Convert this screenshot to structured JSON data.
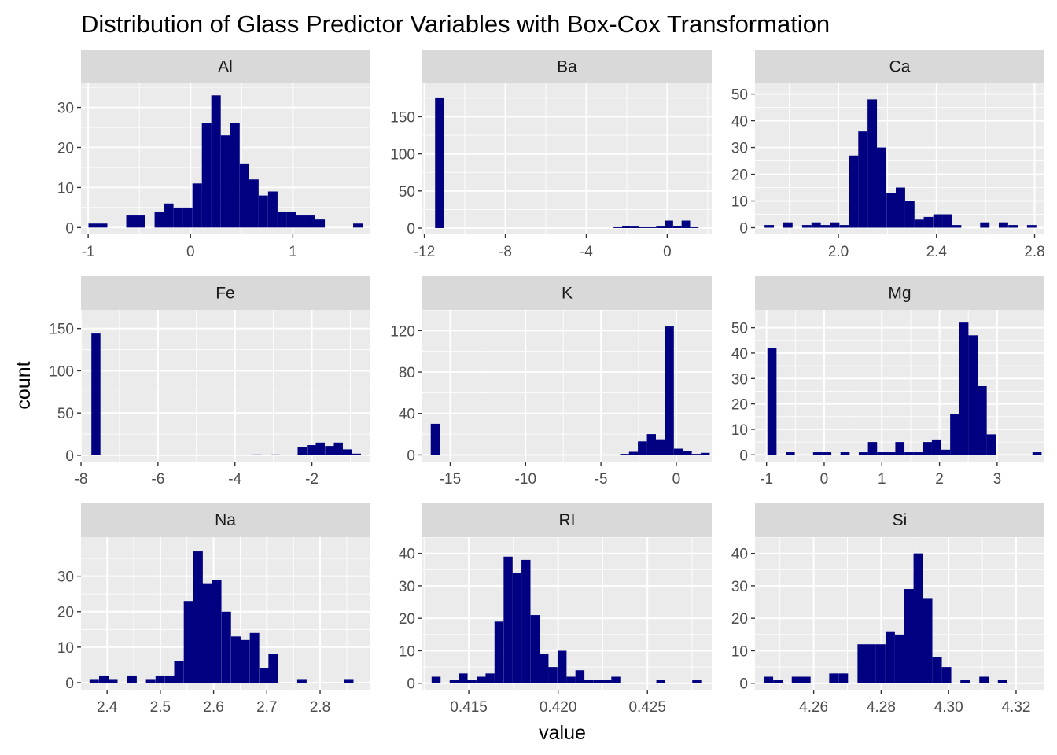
{
  "colors": {
    "bar": "#000080",
    "panel_background": "#ebebeb",
    "strip_background": "#d9d9d9",
    "grid": "#ffffff",
    "tick_text": "#4d4d4d"
  },
  "chart_data": {
    "type": "bar",
    "title": "Distribution of Glass Predictor Variables with Box-Cox Transformation",
    "xlabel": "value",
    "ylabel": "count",
    "grid": true,
    "facets": [
      {
        "name": "Al",
        "xlim": [
          -1.07,
          1.75
        ],
        "ylim": [
          -1.7,
          36
        ],
        "xticks": [
          -1,
          0,
          1
        ],
        "yticks": [
          0,
          10,
          20,
          30
        ],
        "xticklabels": [
          "-1",
          "0",
          "1"
        ],
        "yticklabels": [
          "0",
          "10",
          "20",
          "30"
        ],
        "bin_width": 0.0924,
        "bin_starts": [
          -0.997,
          -0.905,
          -0.628,
          -0.536,
          -0.351,
          -0.259,
          -0.166,
          -0.074,
          0.019,
          0.111,
          0.203,
          0.296,
          0.388,
          0.481,
          0.573,
          0.665,
          0.758,
          0.85,
          0.943,
          1.035,
          1.127,
          1.22,
          1.589
        ],
        "counts": [
          1,
          1,
          3,
          3,
          4,
          6,
          5,
          5,
          11,
          26,
          33,
          23,
          26,
          16,
          12,
          8,
          9,
          4,
          4,
          3,
          3,
          2,
          1
        ]
      },
      {
        "name": "Ba",
        "xlim": [
          -12.1,
          2.2
        ],
        "ylim": [
          -8.5,
          195
        ],
        "xticks": [
          -12,
          -8,
          -4,
          0
        ],
        "yticks": [
          0,
          50,
          100,
          150
        ],
        "xticklabels": [
          "-12",
          "-8",
          "-4",
          "0"
        ],
        "yticklabels": [
          "0",
          "50",
          "100",
          "150"
        ],
        "bin_width": 0.42,
        "bin_starts": [
          -11.47,
          -2.65,
          -2.23,
          -1.81,
          -1.39,
          -0.97,
          -0.55,
          -0.13,
          0.29,
          0.71,
          1.13
        ],
        "counts": [
          176,
          1,
          3,
          2,
          1,
          1,
          2,
          10,
          3,
          10,
          1
        ]
      },
      {
        "name": "Ca",
        "xlim": [
          1.66,
          2.84
        ],
        "ylim": [
          -2.5,
          54
        ],
        "xticks": [
          2.0,
          2.4,
          2.8
        ],
        "yticks": [
          0,
          10,
          20,
          30,
          40,
          50
        ],
        "xticklabels": [
          "2.0",
          "2.4",
          "2.8"
        ],
        "yticklabels": [
          "0",
          "10",
          "20",
          "30",
          "40",
          "50"
        ],
        "bin_width": 0.0382,
        "bin_starts": [
          1.699,
          1.775,
          1.852,
          1.89,
          1.928,
          1.966,
          2.005,
          2.043,
          2.081,
          2.119,
          2.157,
          2.196,
          2.234,
          2.272,
          2.31,
          2.348,
          2.387,
          2.425,
          2.463,
          2.578,
          2.654,
          2.693,
          2.769
        ],
        "counts": [
          1,
          2,
          1,
          2,
          1,
          2,
          1,
          27,
          36,
          48,
          30,
          13,
          15,
          10,
          3,
          4,
          5,
          5,
          1,
          2,
          2,
          1,
          1
        ]
      },
      {
        "name": "Fe",
        "xlim": [
          -8.0,
          -0.5
        ],
        "ylim": [
          -7.5,
          172
        ],
        "xticks": [
          -8,
          -6,
          -4,
          -2
        ],
        "yticks": [
          0,
          50,
          100,
          150
        ],
        "xticklabels": [
          "-8",
          "-6",
          "-4",
          "-2"
        ],
        "yticklabels": [
          "0",
          "50",
          "100",
          "150"
        ],
        "bin_width": 0.2345,
        "bin_starts": [
          -7.73,
          -3.54,
          -3.07,
          -2.37,
          -2.13,
          -1.9,
          -1.66,
          -1.43,
          -1.2,
          -0.96
        ],
        "counts": [
          144,
          1,
          1,
          10,
          12,
          15,
          11,
          15,
          7,
          2
        ]
      },
      {
        "name": "K",
        "xlim": [
          -16.85,
          2.35
        ],
        "ylim": [
          -6.5,
          140
        ],
        "xticks": [
          -15,
          -10,
          -5,
          0
        ],
        "yticks": [
          0,
          40,
          80,
          120
        ],
        "xticklabels": [
          "-15",
          "-10",
          "-5",
          "0"
        ],
        "yticklabels": [
          "0",
          "40",
          "80",
          "120"
        ],
        "bin_width": 0.5958,
        "bin_starts": [
          -16.29,
          -3.73,
          -3.14,
          -2.55,
          -1.95,
          -1.36,
          -0.76,
          -0.16,
          0.43,
          1.03,
          1.62
        ],
        "counts": [
          30,
          1,
          3,
          13,
          20,
          15,
          124,
          6,
          4,
          1,
          2
        ]
      },
      {
        "name": "Mg",
        "xlim": [
          -1.2,
          3.82
        ],
        "ylim": [
          -2.7,
          57
        ],
        "xticks": [
          -1,
          0,
          1,
          2,
          3
        ],
        "yticks": [
          0,
          10,
          20,
          30,
          40,
          50
        ],
        "xticklabels": [
          "-1",
          "0",
          "1",
          "2",
          "3"
        ],
        "yticklabels": [
          "0",
          "10",
          "20",
          "30",
          "40",
          "50"
        ],
        "bin_width": 0.1585,
        "bin_starts": [
          -0.985,
          -0.668,
          -0.193,
          -0.034,
          0.283,
          0.6,
          0.759,
          0.917,
          1.076,
          1.234,
          1.393,
          1.551,
          1.71,
          1.868,
          2.027,
          2.185,
          2.344,
          2.502,
          2.661,
          2.819,
          3.612
        ],
        "counts": [
          42,
          1,
          1,
          1,
          1,
          1,
          5,
          1,
          1,
          5,
          1,
          1,
          5,
          6,
          2,
          16,
          52,
          47,
          27,
          8,
          1
        ]
      },
      {
        "name": "Na",
        "xlim": [
          2.351,
          2.893
        ],
        "ylim": [
          -2,
          41
        ],
        "xticks": [
          2.4,
          2.5,
          2.6,
          2.7,
          2.8
        ],
        "yticks": [
          0,
          10,
          20,
          30
        ],
        "xticklabels": [
          "2.4",
          "2.5",
          "2.6",
          "2.7",
          "2.8"
        ],
        "yticklabels": [
          "0",
          "10",
          "20",
          "30"
        ],
        "bin_width": 0.0177,
        "bin_starts": [
          2.367,
          2.385,
          2.402,
          2.438,
          2.473,
          2.491,
          2.509,
          2.526,
          2.544,
          2.562,
          2.579,
          2.597,
          2.615,
          2.633,
          2.65,
          2.668,
          2.686,
          2.703,
          2.757,
          2.845
        ],
        "counts": [
          1,
          2,
          1,
          2,
          1,
          2,
          2,
          6,
          23,
          37,
          28,
          29,
          20,
          13,
          12,
          14,
          4,
          8,
          1,
          1
        ]
      },
      {
        "name": "RI",
        "xlim": [
          0.4124,
          0.4286
        ],
        "ylim": [
          -2,
          45
        ],
        "xticks": [
          0.415,
          0.42,
          0.425
        ],
        "yticks": [
          0,
          10,
          20,
          30,
          40
        ],
        "xticklabels": [
          "0.415",
          "0.420",
          "0.425"
        ],
        "yticklabels": [
          "0",
          "10",
          "20",
          "30",
          "40"
        ],
        "bin_width": 0.000503,
        "bin_starts": [
          0.41292,
          0.41393,
          0.41443,
          0.41493,
          0.41544,
          0.41594,
          0.41644,
          0.41695,
          0.41745,
          0.41795,
          0.41846,
          0.41896,
          0.41946,
          0.41997,
          0.42047,
          0.42097,
          0.42147,
          0.42198,
          0.42248,
          0.42298,
          0.4255,
          0.42751
        ],
        "counts": [
          2,
          1,
          3,
          1,
          2,
          3,
          19,
          39,
          34,
          38,
          21,
          9,
          5,
          10,
          2,
          4,
          1,
          1,
          1,
          2,
          1,
          1
        ]
      },
      {
        "name": "Si",
        "xlim": [
          4.2426,
          4.3284
        ],
        "ylim": [
          -2,
          45
        ],
        "xticks": [
          4.26,
          4.28,
          4.3,
          4.32
        ],
        "yticks": [
          0,
          10,
          20,
          30,
          40
        ],
        "xticklabels": [
          "4.26",
          "4.28",
          "4.30",
          "4.32"
        ],
        "yticklabels": [
          "0",
          "10",
          "20",
          "30",
          "40"
        ],
        "bin_width": 0.00278,
        "bin_starts": [
          4.2452,
          4.248,
          4.2535,
          4.2563,
          4.2646,
          4.2674,
          4.273,
          4.2757,
          4.2785,
          4.2813,
          4.2841,
          4.2869,
          4.2896,
          4.2924,
          4.2952,
          4.298,
          4.3035,
          4.3091,
          4.3146
        ],
        "counts": [
          2,
          1,
          2,
          2,
          3,
          3,
          12,
          12,
          12,
          16,
          15,
          29,
          40,
          26,
          8,
          5,
          1,
          2,
          1
        ]
      }
    ]
  }
}
